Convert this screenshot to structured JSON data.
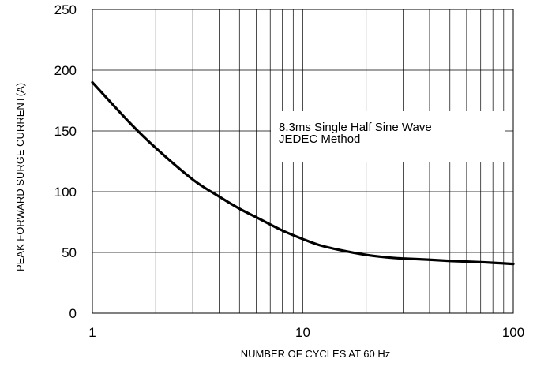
{
  "chart_data": {
    "type": "line",
    "title": "",
    "xlabel": "NUMBER OF CYCLES AT 60 Hz",
    "ylabel": "PEAK FORWARD SURGE CURRENT(A)",
    "x_scale": "log",
    "xlim": [
      1,
      100
    ],
    "ylim": [
      0,
      250
    ],
    "x_ticks": [
      {
        "value": 1,
        "label": "1"
      },
      {
        "value": 10,
        "label": "10"
      },
      {
        "value": 100,
        "label": "100"
      }
    ],
    "y_ticks": [
      {
        "value": 0,
        "label": "0"
      },
      {
        "value": 50,
        "label": "50"
      },
      {
        "value": 100,
        "label": "100"
      },
      {
        "value": 150,
        "label": "150"
      },
      {
        "value": 200,
        "label": "200"
      },
      {
        "value": 250,
        "label": "250"
      }
    ],
    "grid": true,
    "annotation": [
      "8.3ms Single Half Sine Wave",
      "JEDEC Method"
    ],
    "series": [
      {
        "x": [
          1,
          1.5,
          2,
          3,
          4,
          5,
          6,
          7,
          8,
          10,
          12,
          15,
          20,
          25,
          30,
          40,
          50,
          60,
          70,
          80,
          100
        ],
        "y": [
          190,
          157,
          136,
          110,
          96,
          86,
          79,
          73,
          68,
          61,
          56,
          52,
          48,
          46,
          45,
          44,
          43,
          42.5,
          42,
          41.5,
          40.5
        ]
      }
    ],
    "colors": {
      "line": "#000000",
      "grid": "#000000",
      "axis": "#000000"
    }
  }
}
